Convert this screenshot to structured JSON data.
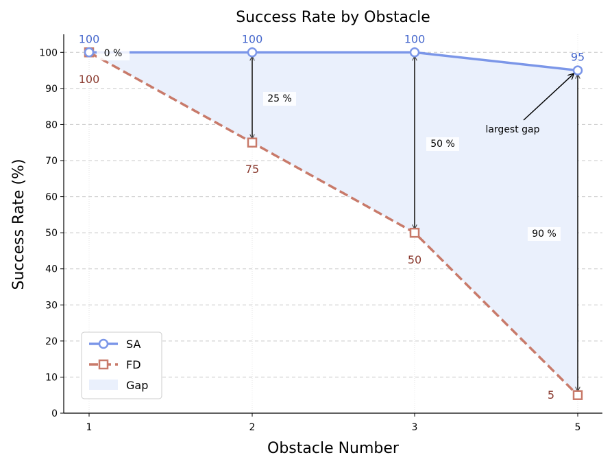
{
  "chart_data": {
    "type": "line",
    "title": "Success Rate by Obstacle",
    "xlabel": "Obstacle Number",
    "ylabel": "Success Rate (%)",
    "categories": [
      "1",
      "2",
      "3",
      "5"
    ],
    "ylim": [
      0,
      105
    ],
    "yticks": [
      0,
      10,
      20,
      30,
      40,
      50,
      60,
      70,
      80,
      90,
      100
    ],
    "ytick_labels": [
      "0",
      "10",
      "20",
      "30",
      "40",
      "50",
      "60",
      "70",
      "80",
      "90",
      "100"
    ],
    "grid": "y dashed",
    "series": [
      {
        "name": "SA",
        "values": [
          100,
          100,
          100,
          95
        ],
        "color": "#7b96e8",
        "marker": "circle",
        "linestyle": "solid",
        "labels": [
          "100",
          "100",
          "100",
          "95"
        ]
      },
      {
        "name": "FD",
        "values": [
          100,
          75,
          50,
          5
        ],
        "color": "#c87a6a",
        "marker": "square",
        "linestyle": "dashed",
        "labels": [
          "100",
          "75",
          "50",
          "5"
        ]
      }
    ],
    "gap": {
      "name": "Gap",
      "color": "#eaf0fc",
      "labels": [
        "0 %",
        "25 %",
        "50 %",
        "90 %"
      ]
    },
    "annotation": {
      "text": "largest gap",
      "category_index": 3
    },
    "legend": {
      "position": "lower-left",
      "entries": [
        "SA",
        "FD",
        "Gap"
      ]
    }
  }
}
